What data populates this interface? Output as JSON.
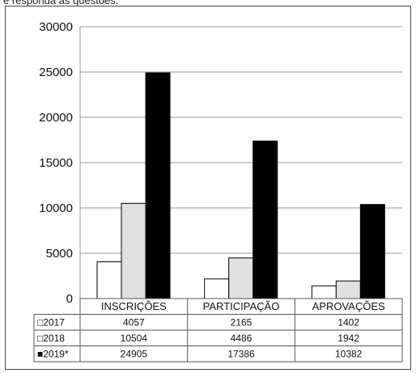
{
  "header_text": "e responda às questões.",
  "chart_data": {
    "type": "bar",
    "categories": [
      "INSCRIÇÕES",
      "PARTICIPAÇÃO",
      "APROVAÇÕES"
    ],
    "series": [
      {
        "name": "2017",
        "values": [
          4057,
          2165,
          1402
        ],
        "color": "#ffffff",
        "marker": "□"
      },
      {
        "name": "2018",
        "values": [
          10504,
          4486,
          1942
        ],
        "color": "#e0e0e0",
        "marker": "□"
      },
      {
        "name": "2019*",
        "values": [
          24905,
          17386,
          10382
        ],
        "color": "#000000",
        "marker": "■"
      }
    ],
    "yticks": [
      "0",
      "5000",
      "10000",
      "15000",
      "20000",
      "25000",
      "30000"
    ],
    "ylim": [
      0,
      30000
    ],
    "grid": true,
    "legend": "data-table-below"
  }
}
